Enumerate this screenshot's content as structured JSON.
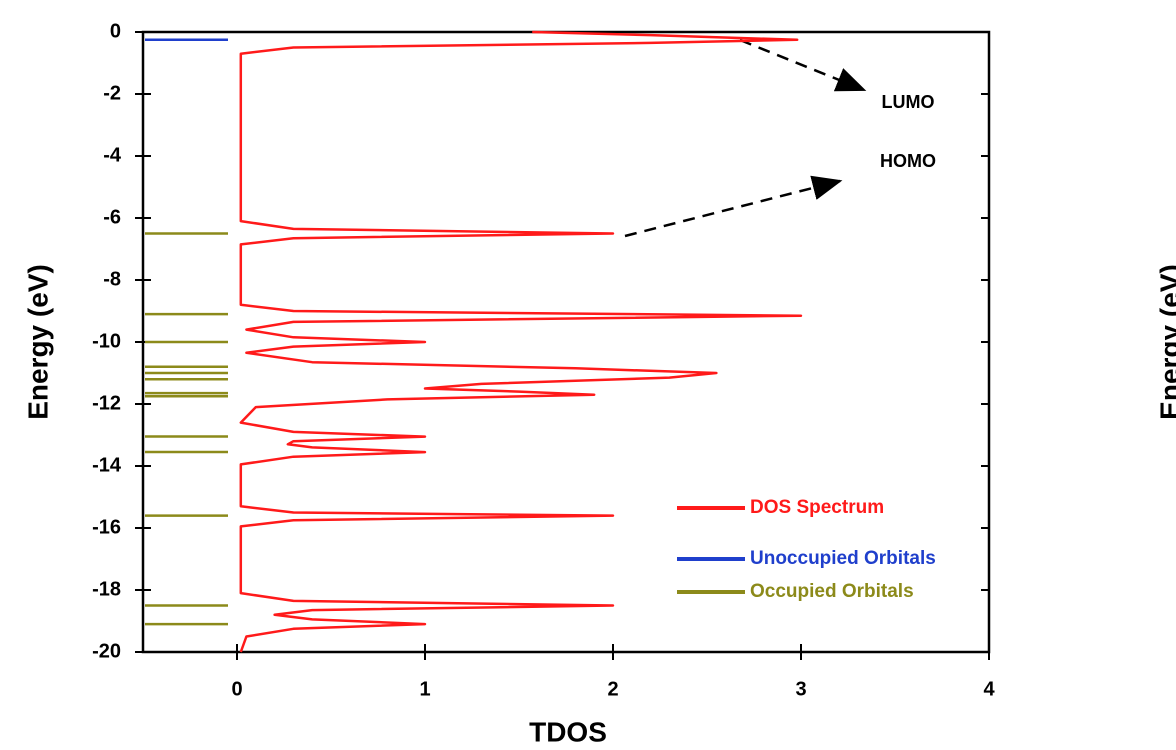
{
  "chart_data": {
    "type": "line",
    "x_label": "TDOS",
    "y_label": "Energy (eV)",
    "xlim": [
      -0.5,
      4
    ],
    "ylim": [
      -20,
      0
    ],
    "xticks": [
      0,
      1,
      2,
      3,
      4
    ],
    "yticks": [
      0,
      -2,
      -4,
      -6,
      -8,
      -10,
      -12,
      -14,
      -16,
      -18,
      -20
    ],
    "annotations": [
      "LUMO",
      "HOMO"
    ],
    "legend": "lower right",
    "series": [
      {
        "name": "DOS Spectrum",
        "color": "#ff1a1a",
        "x": [
          1.57,
          2.2,
          2.98,
          2.2,
          0.3,
          0.02,
          0.02,
          0.3,
          2.0,
          0.3,
          0.02,
          0.02,
          0.3,
          3.0,
          0.3,
          0.05,
          0.3,
          1.0,
          0.3,
          0.05,
          0.4,
          1.8,
          2.55,
          2.3,
          1.3,
          1.0,
          1.5,
          1.9,
          0.8,
          0.1,
          0.02,
          0.3,
          1.0,
          0.3,
          0.27,
          0.4,
          1.0,
          0.3,
          0.02,
          0.02,
          0.3,
          2.0,
          0.3,
          0.02,
          0.02,
          0.3,
          2.0,
          0.4,
          0.2,
          0.4,
          1.0,
          0.3,
          0.05,
          0.02
        ],
        "values": [
          0,
          -0.1,
          -0.25,
          -0.35,
          -0.5,
          -0.7,
          -6.1,
          -6.35,
          -6.5,
          -6.65,
          -6.85,
          -8.8,
          -9.0,
          -9.15,
          -9.35,
          -9.6,
          -9.85,
          -10.0,
          -10.15,
          -10.35,
          -10.65,
          -10.85,
          -11.0,
          -11.15,
          -11.35,
          -11.5,
          -11.6,
          -11.7,
          -11.85,
          -12.1,
          -12.6,
          -12.9,
          -13.05,
          -13.2,
          -13.3,
          -13.4,
          -13.55,
          -13.7,
          -13.95,
          -15.3,
          -15.5,
          -15.6,
          -15.75,
          -15.95,
          -18.1,
          -18.35,
          -18.5,
          -18.65,
          -18.8,
          -18.95,
          -19.1,
          -19.25,
          -19.5,
          -20
        ]
      },
      {
        "name": "Unoccupied Orbitals",
        "color": "#1f3fcc",
        "values": [
          -0.25
        ]
      },
      {
        "name": "Occupied Orbitals",
        "color": "#8c8a1a",
        "values": [
          -6.5,
          -9.1,
          -10.0,
          -10.8,
          -11.0,
          -11.2,
          -11.65,
          -11.75,
          -13.05,
          -13.55,
          -15.6,
          -18.5,
          -19.1
        ]
      }
    ]
  },
  "second_panel": {
    "y_label": "Energy (eV)"
  }
}
